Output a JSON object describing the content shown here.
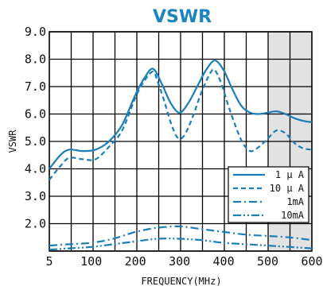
{
  "chart_data": {
    "type": "line",
    "title": "VSWR",
    "xlabel": "FREQUENCY(MHz)",
    "ylabel": "VSWR",
    "xlim": [
      5,
      600
    ],
    "ylim": [
      1.0,
      9.0
    ],
    "x_ticks": [
      "5",
      "100",
      "200",
      "300",
      "400",
      "500",
      "600"
    ],
    "y_ticks": [
      "9.0",
      "8.0",
      "7.0",
      "6.0",
      "5.0",
      "4.0",
      "3.0",
      "2.0"
    ],
    "grid": true,
    "shaded_x_range": [
      500,
      600
    ],
    "legend_position": "lower-right",
    "line_color": "#1a7fb8",
    "shade_color": "#e2e2e2",
    "series": [
      {
        "name": "1 μ A",
        "style": "solid",
        "x": [
          5,
          30,
          50,
          80,
          110,
          140,
          170,
          200,
          220,
          240,
          260,
          280,
          300,
          320,
          340,
          360,
          380,
          400,
          420,
          440,
          460,
          480,
          500,
          520,
          540,
          560,
          580,
          600
        ],
        "y": [
          4.0,
          4.5,
          4.7,
          4.65,
          4.7,
          5.0,
          5.6,
          6.7,
          7.3,
          7.65,
          7.1,
          6.4,
          6.05,
          6.4,
          7.0,
          7.6,
          7.95,
          7.6,
          6.9,
          6.3,
          6.05,
          6.0,
          6.05,
          6.1,
          6.0,
          5.85,
          5.75,
          5.7
        ]
      },
      {
        "name": "10 μ A",
        "style": "dashed",
        "x": [
          5,
          30,
          50,
          80,
          110,
          140,
          170,
          200,
          220,
          240,
          250,
          265,
          280,
          295,
          310,
          330,
          350,
          370,
          380,
          395,
          415,
          440,
          460,
          480,
          500,
          520,
          540,
          560,
          580,
          600
        ],
        "y": [
          3.6,
          4.1,
          4.4,
          4.35,
          4.35,
          4.8,
          5.4,
          6.6,
          7.2,
          7.55,
          7.2,
          6.5,
          5.7,
          5.15,
          5.2,
          5.9,
          6.8,
          7.5,
          7.6,
          7.1,
          6.1,
          5.05,
          4.65,
          4.8,
          5.1,
          5.4,
          5.3,
          4.95,
          4.75,
          4.7
        ]
      },
      {
        "name": "1mA",
        "style": "dashdot",
        "x": [
          5,
          50,
          100,
          150,
          200,
          250,
          300,
          350,
          400,
          450,
          500,
          550,
          600
        ],
        "y": [
          1.2,
          1.25,
          1.3,
          1.45,
          1.7,
          1.85,
          1.9,
          1.8,
          1.7,
          1.6,
          1.55,
          1.5,
          1.4
        ]
      },
      {
        "name": "10mA",
        "style": "dashdotdot",
        "x": [
          5,
          50,
          100,
          150,
          200,
          250,
          300,
          350,
          400,
          450,
          500,
          550,
          600
        ],
        "y": [
          1.05,
          1.1,
          1.15,
          1.25,
          1.35,
          1.45,
          1.45,
          1.4,
          1.3,
          1.25,
          1.2,
          1.15,
          1.1
        ]
      }
    ]
  }
}
